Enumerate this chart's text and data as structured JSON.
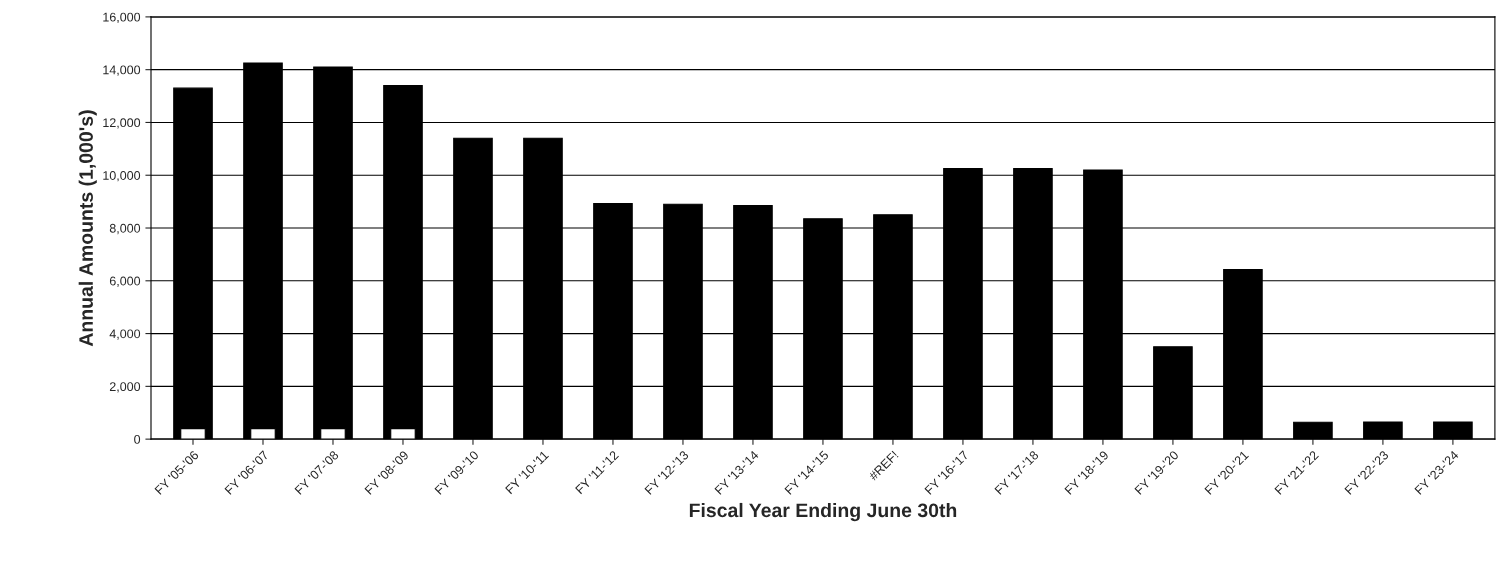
{
  "chart_data": {
    "type": "bar",
    "xlabel": "Fiscal Year Ending June 30th",
    "ylabel": "Annual Amounts (1,000's)",
    "categories": [
      "FY '05-'06",
      "FY '06-'07",
      "FY '07-'08",
      "FY '08-'09",
      "FY '09-'10",
      "FY '10-'11",
      "FY '11-'12",
      "FY '12-'13",
      "FY '13-'14",
      "FY '14-'15",
      "#REF!",
      "FY '16-'17",
      "FY '17-'18",
      "FY '18-'19",
      "FY '19-'20",
      "FY '20-'21",
      "FY '21-'22",
      "FY '22-'23",
      "FY '23-'24"
    ],
    "series": [
      {
        "color": "#000000",
        "values": [
          13300,
          14250,
          14100,
          13400,
          11400,
          11400,
          8930,
          8900,
          8850,
          8350,
          8500,
          10250,
          10250,
          10200,
          3500,
          6430,
          640,
          650,
          650
        ]
      },
      {
        "color": "#ffffff",
        "values": [
          400,
          400,
          400,
          400,
          null,
          null,
          null,
          null,
          null,
          null,
          null,
          null,
          null,
          null,
          null,
          null,
          null,
          null,
          null
        ]
      }
    ],
    "ylim": [
      0,
      16000
    ],
    "yticks": [
      {
        "value": 0,
        "label": "0"
      },
      {
        "value": 2000,
        "label": "2,000"
      },
      {
        "value": 4000,
        "label": "4,000"
      },
      {
        "value": 6000,
        "label": "6,000"
      },
      {
        "value": 8000,
        "label": "8,000"
      },
      {
        "value": 10000,
        "label": "10,000"
      },
      {
        "value": 12000,
        "label": "12,000"
      },
      {
        "value": 14000,
        "label": "14,000"
      },
      {
        "value": 16000,
        "label": "16,000"
      }
    ],
    "grid": "y",
    "legend": false
  }
}
